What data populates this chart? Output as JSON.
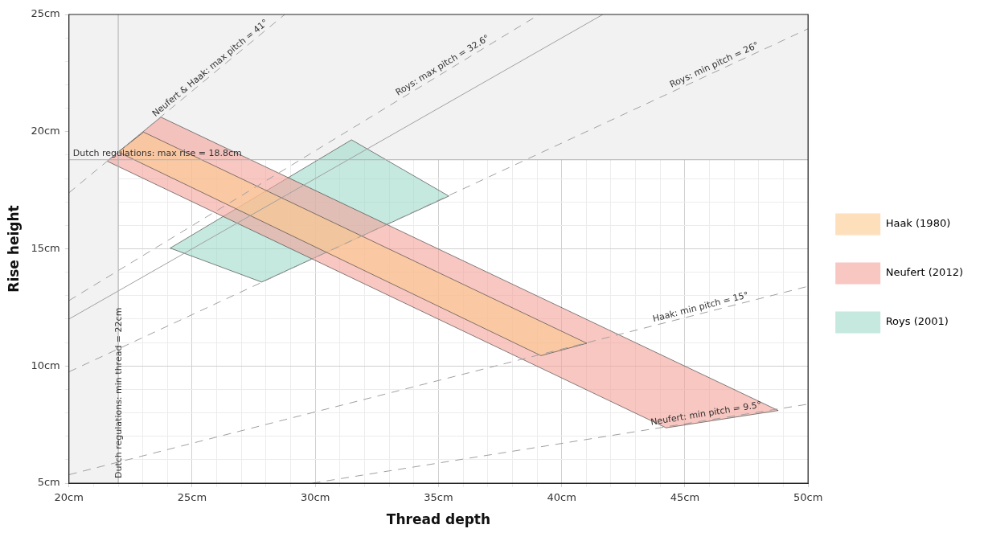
{
  "chart_data": {
    "type": "area",
    "xlabel": "Thread depth",
    "ylabel": "Rise height",
    "xlim": [
      20,
      50
    ],
    "ylim": [
      5,
      25
    ],
    "xticks": [
      {
        "value": 20,
        "label": "20cm"
      },
      {
        "value": 21,
        "label": null
      },
      {
        "value": 22,
        "label": null
      },
      {
        "value": 23,
        "label": null
      },
      {
        "value": 24,
        "label": null
      },
      {
        "value": 25,
        "label": "25cm"
      },
      {
        "value": 26,
        "label": null
      },
      {
        "value": 27,
        "label": null
      },
      {
        "value": 28,
        "label": null
      },
      {
        "value": 29,
        "label": null
      },
      {
        "value": 30,
        "label": "30cm"
      },
      {
        "value": 31,
        "label": null
      },
      {
        "value": 32,
        "label": null
      },
      {
        "value": 33,
        "label": null
      },
      {
        "value": 34,
        "label": null
      },
      {
        "value": 35,
        "label": "35cm"
      },
      {
        "value": 36,
        "label": null
      },
      {
        "value": 37,
        "label": null
      },
      {
        "value": 38,
        "label": null
      },
      {
        "value": 39,
        "label": null
      },
      {
        "value": 40,
        "label": "40cm"
      },
      {
        "value": 41,
        "label": null
      },
      {
        "value": 42,
        "label": null
      },
      {
        "value": 43,
        "label": null
      },
      {
        "value": 44,
        "label": null
      },
      {
        "value": 45,
        "label": "45cm"
      },
      {
        "value": 46,
        "label": null
      },
      {
        "value": 47,
        "label": null
      },
      {
        "value": 48,
        "label": null
      },
      {
        "value": 49,
        "label": null
      },
      {
        "value": 50,
        "label": "50cm"
      }
    ],
    "yticks": [
      {
        "value": 5,
        "label": "5cm"
      },
      {
        "value": 6,
        "label": null
      },
      {
        "value": 7,
        "label": null
      },
      {
        "value": 8,
        "label": null
      },
      {
        "value": 9,
        "label": null
      },
      {
        "value": 10,
        "label": "10cm"
      },
      {
        "value": 11,
        "label": null
      },
      {
        "value": 12,
        "label": null
      },
      {
        "value": 13,
        "label": null
      },
      {
        "value": 14,
        "label": null
      },
      {
        "value": 15,
        "label": "15cm"
      },
      {
        "value": 16,
        "label": null
      },
      {
        "value": 17,
        "label": null
      },
      {
        "value": 18,
        "label": null
      },
      {
        "value": 19,
        "label": null
      },
      {
        "value": 20,
        "label": "20cm"
      },
      {
        "value": 21,
        "label": null
      },
      {
        "value": 22,
        "label": null
      },
      {
        "value": 23,
        "label": null
      },
      {
        "value": 24,
        "label": null
      },
      {
        "value": 25,
        "label": "25cm"
      }
    ],
    "grid": true,
    "legend": "right",
    "bands": [
      {
        "axis": "x",
        "from": 20,
        "to": 22,
        "color": "#f2f2f2"
      },
      {
        "axis": "y",
        "from": 18.8,
        "to": 25,
        "color": "#f2f2f2"
      }
    ],
    "ref_lines": [
      {
        "axis": "x",
        "value": 22,
        "label": "Dutch regulations: min thread = 22cm",
        "color": "#b0b0b0"
      },
      {
        "axis": "y",
        "value": 18.8,
        "label": "Dutch regulations: max rise = 18.8cm",
        "color": "#b0b0b0"
      }
    ],
    "series": [
      {
        "type": "line",
        "color": "#a0a0a0",
        "line_style": "dashed",
        "x": [
          20,
          28.76
        ],
        "values": [
          17.39,
          25
        ]
      },
      {
        "type": "line",
        "color": "#a0a0a0",
        "line_style": "dashed",
        "x": [
          20,
          39.09
        ],
        "values": [
          12.79,
          25
        ]
      },
      {
        "type": "line",
        "color": "#a0a0a0",
        "line_style": "solid",
        "x": [
          20,
          41.67
        ],
        "values": [
          12,
          25
        ]
      },
      {
        "type": "line",
        "color": "#a0a0a0",
        "line_style": "dashed",
        "x": [
          20,
          50
        ],
        "values": [
          9.75,
          24.39
        ]
      },
      {
        "type": "line",
        "color": "#a0a0a0",
        "line_style": "dashed",
        "x": [
          20,
          50
        ],
        "values": [
          5.36,
          13.4
        ]
      },
      {
        "type": "line",
        "color": "#a0a0a0",
        "line_style": "dashed",
        "x": [
          29.88,
          50
        ],
        "values": [
          5,
          8.37
        ]
      },
      {
        "name": "Haak (1980)",
        "color": "#fcc98f",
        "x": [
          23.03,
          41.02,
          39.16,
          22,
          23.03
        ],
        "values": [
          19.98,
          10.97,
          10.44,
          19.13,
          19.98
        ]
      },
      {
        "name": "Neufert (2012)",
        "color": "#f4a19a",
        "x": [
          23.73,
          48.79,
          44.24,
          21.55,
          23.73
        ],
        "values": [
          20.62,
          8.1,
          7.36,
          18.74,
          20.62
        ]
      },
      {
        "name": "Roys (2001)",
        "color": "#9fd8c9",
        "x": [
          24.11,
          31.47,
          35.42,
          27.82,
          24.11
        ],
        "values": [
          15.03,
          19.65,
          17.25,
          13.58,
          15.03
        ]
      }
    ],
    "annotations": [
      {
        "text": "Neufert & Haak: max pitch = 41°",
        "x": 25.9,
        "y": 22.5
      },
      {
        "text": "Roys: max pitch = 32.6°",
        "x": 35.3,
        "y": 22.6
      },
      {
        "text": "Roys: min pitch = 26°",
        "x": 46.3,
        "y": 22.6
      },
      {
        "text": "Haak: min pitch = 15°",
        "x": 45.7,
        "y": 12.25
      },
      {
        "text": "Neufert: min pitch = 9.5°",
        "x": 45.9,
        "y": 7.7
      }
    ]
  }
}
